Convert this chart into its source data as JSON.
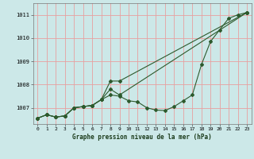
{
  "title": "Graphe pression niveau de la mer (hPa)",
  "background_color": "#cce8e8",
  "grid_color": "#e8a0a0",
  "line_color": "#2d5a2d",
  "xlim": [
    -0.5,
    23.5
  ],
  "ylim": [
    1006.3,
    1011.5
  ],
  "xticks": [
    0,
    1,
    2,
    3,
    4,
    5,
    6,
    7,
    8,
    9,
    10,
    11,
    12,
    13,
    14,
    15,
    16,
    17,
    18,
    19,
    20,
    21,
    22,
    23
  ],
  "yticks": [
    1007,
    1008,
    1009,
    1010,
    1011
  ],
  "series1_x": [
    0,
    1,
    2,
    3,
    4,
    5,
    6,
    7,
    8,
    9,
    10,
    11,
    12,
    13,
    14,
    15,
    16,
    17,
    18,
    19,
    20,
    21,
    22,
    23
  ],
  "series1_y": [
    1006.55,
    1006.7,
    1006.6,
    1006.65,
    1007.0,
    1007.05,
    1007.1,
    1007.35,
    1007.55,
    1007.5,
    1007.3,
    1007.25,
    1007.0,
    1006.9,
    1006.88,
    1007.05,
    1007.3,
    1007.55,
    1008.85,
    1009.85,
    1010.35,
    1010.85,
    1011.0,
    1011.1
  ],
  "series2_x": [
    0,
    1,
    2,
    3,
    4,
    5,
    6,
    7,
    8,
    9,
    23
  ],
  "series2_y": [
    1006.55,
    1006.7,
    1006.6,
    1006.65,
    1007.0,
    1007.05,
    1007.1,
    1007.35,
    1008.15,
    1008.15,
    1011.1
  ],
  "series3_x": [
    0,
    1,
    2,
    3,
    4,
    5,
    6,
    7,
    8,
    9,
    23
  ],
  "series3_y": [
    1006.55,
    1006.7,
    1006.6,
    1006.65,
    1007.0,
    1007.05,
    1007.1,
    1007.35,
    1007.8,
    1007.55,
    1011.1
  ]
}
